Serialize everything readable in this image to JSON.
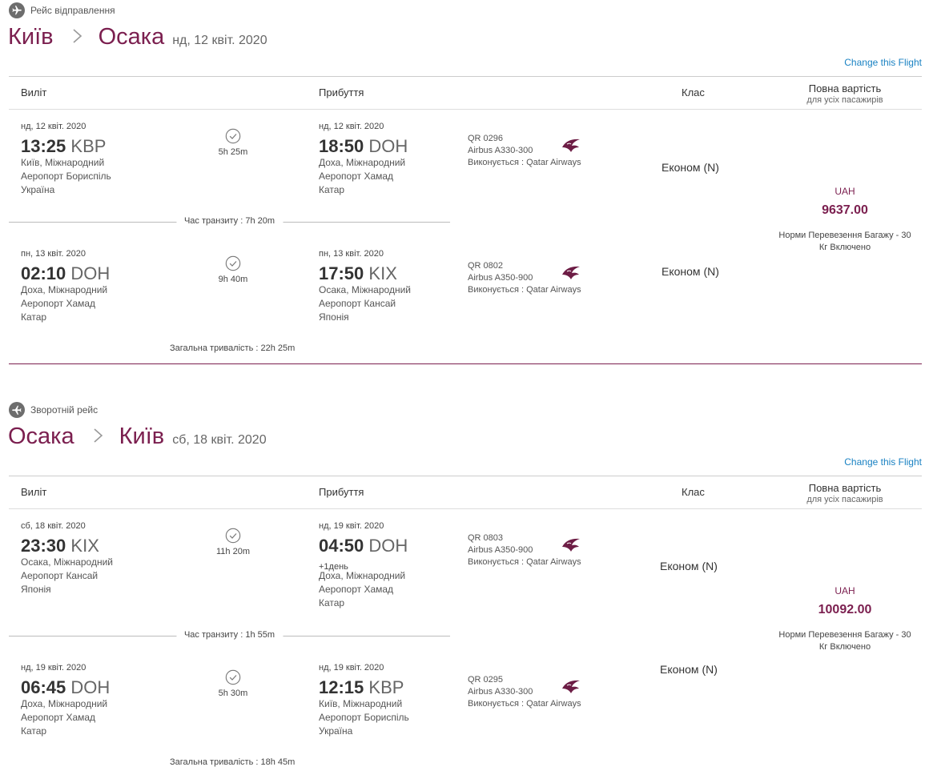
{
  "legs": [
    {
      "heading": "Рейс відправлення",
      "from_city": "Київ",
      "to_city": "Осака",
      "date": "нд, 12 квіт. 2020",
      "change_link": "Change this Flight",
      "col_depart": "Виліт",
      "col_arrive": "Прибуття",
      "col_class": "Клас",
      "col_price": "Повна вартість",
      "col_price_sub": "для усіх пасажирів",
      "segments": [
        {
          "dep_date": "нд, 12 квіт. 2020",
          "dep_time": "13:25",
          "dep_code": "KBP",
          "dep_city": "Київ, Міжнародний",
          "dep_airport": "Аеропорт Бориспіль",
          "dep_country": "Україна",
          "duration": "5h 25m",
          "arr_date": "нд, 12 квіт. 2020",
          "arr_time": "18:50",
          "arr_code": "DOH",
          "arr_plus": "",
          "arr_city": "Доха, Міжнародний",
          "arr_airport": "Аеропорт Хамад",
          "arr_country": "Катар",
          "flight_no": "QR 0296",
          "aircraft": "Airbus A330-300",
          "operator": "Виконується : Qatar Airways",
          "cabin": "Економ (N)"
        },
        {
          "dep_date": "пн, 13 квіт. 2020",
          "dep_time": "02:10",
          "dep_code": "DOH",
          "dep_city": "Доха, Міжнародний",
          "dep_airport": "Аеропорт Хамад",
          "dep_country": "Катар",
          "duration": "9h 40m",
          "arr_date": "пн, 13 квіт. 2020",
          "arr_time": "17:50",
          "arr_code": "KIX",
          "arr_plus": "",
          "arr_city": "Осака, Міжнародний",
          "arr_airport": "Аеропорт Кансай",
          "arr_country": "Японія",
          "flight_no": "QR 0802",
          "aircraft": "Airbus A350-900",
          "operator": "Виконується : Qatar Airways",
          "cabin": "Економ (N)"
        }
      ],
      "transit": "Час транзиту : 7h 20m",
      "total": "Загальна тривалість : 22h 25m",
      "currency": "UAH",
      "price": "9637.00",
      "baggage_1": "Норми Перевезення Багажу - 30",
      "baggage_2": "Кг Включено"
    },
    {
      "heading": "Зворотній рейс",
      "from_city": "Осака",
      "to_city": "Київ",
      "date": "сб, 18 квіт. 2020",
      "change_link": "Change this Flight",
      "col_depart": "Виліт",
      "col_arrive": "Прибуття",
      "col_class": "Клас",
      "col_price": "Повна вартість",
      "col_price_sub": "для усіх пасажирів",
      "segments": [
        {
          "dep_date": "сб, 18 квіт. 2020",
          "dep_time": "23:30",
          "dep_code": "KIX",
          "dep_city": "Осака, Міжнародний",
          "dep_airport": "Аеропорт Кансай",
          "dep_country": "Японія",
          "duration": "11h 20m",
          "arr_date": "нд, 19 квіт. 2020",
          "arr_time": "04:50",
          "arr_code": "DOH",
          "arr_plus": "+1день",
          "arr_city": "Доха, Міжнародний",
          "arr_airport": "Аеропорт Хамад",
          "arr_country": "Катар",
          "flight_no": "QR 0803",
          "aircraft": "Airbus A350-900",
          "operator": "Виконується : Qatar Airways",
          "cabin": "Економ (N)"
        },
        {
          "dep_date": "нд, 19 квіт. 2020",
          "dep_time": "06:45",
          "dep_code": "DOH",
          "dep_city": "Доха, Міжнародний",
          "dep_airport": "Аеропорт Хамад",
          "dep_country": "Катар",
          "duration": "5h 30m",
          "arr_date": "нд, 19 квіт. 2020",
          "arr_time": "12:15",
          "arr_code": "KBP",
          "arr_plus": "",
          "arr_city": "Київ, Міжнародний",
          "arr_airport": "Аеропорт Бориспіль",
          "arr_country": "Україна",
          "flight_no": "QR 0295",
          "aircraft": "Airbus A330-300",
          "operator": "Виконується : Qatar Airways",
          "cabin": "Економ (N)"
        }
      ],
      "transit": "Час транзиту : 1h 55m",
      "total": "Загальна тривалість : 18h 45m",
      "currency": "UAH",
      "price": "10092.00",
      "baggage_1": "Норми Перевезення Багажу - 30",
      "baggage_2": "Кг Включено"
    }
  ],
  "colors": {
    "brand": "#7b1f4f",
    "link": "#1a82c3"
  }
}
